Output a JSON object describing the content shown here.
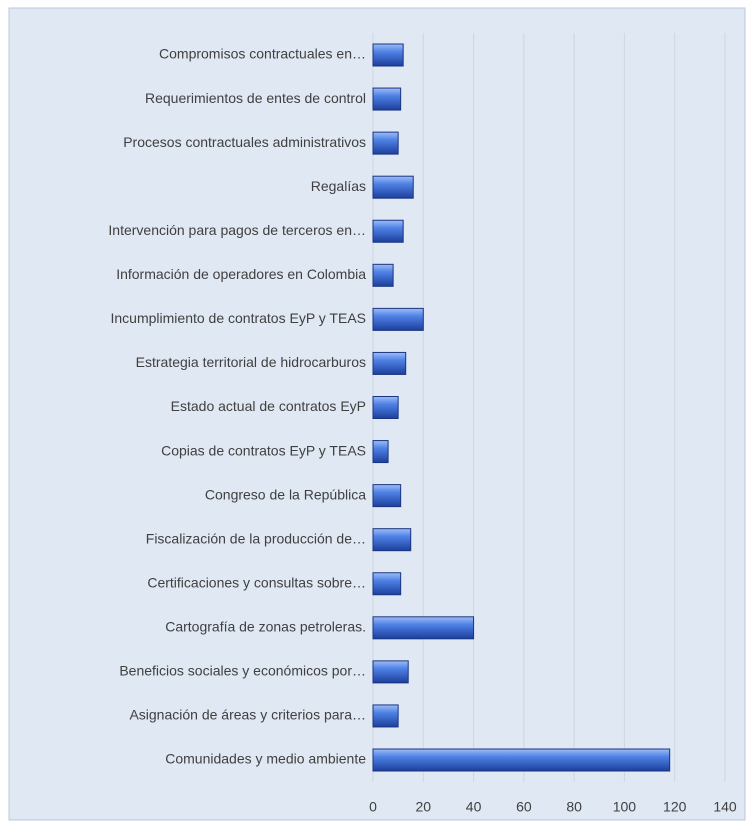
{
  "chart_data": {
    "type": "bar",
    "orientation": "horizontal",
    "categories": [
      "Compromisos contractuales en…",
      "Requerimientos de entes de control",
      "Procesos contractuales administrativos",
      "Regalías",
      "Intervención para pagos de terceros en…",
      "Información de operadores en Colombia",
      "Incumplimiento de contratos EyP y TEAS",
      "Estrategia territorial de hidrocarburos",
      "Estado actual de contratos EyP",
      "Copias de contratos EyP y TEAS",
      "Congreso de la República",
      "Fiscalización de la producción de…",
      "Certificaciones y consultas sobre…",
      "Cartografía de zonas petroleras.",
      "Beneficios sociales y económicos por…",
      "Asignación de áreas y criterios para…",
      "Comunidades y medio ambiente"
    ],
    "values": [
      12,
      11,
      10,
      16,
      12,
      8,
      20,
      13,
      10,
      6,
      11,
      15,
      11,
      40,
      14,
      10,
      118
    ],
    "color": "#3a6fd8",
    "xlim": [
      0,
      140
    ],
    "xticks": [
      0,
      20,
      40,
      60,
      80,
      100,
      120,
      140
    ],
    "grid": true
  }
}
